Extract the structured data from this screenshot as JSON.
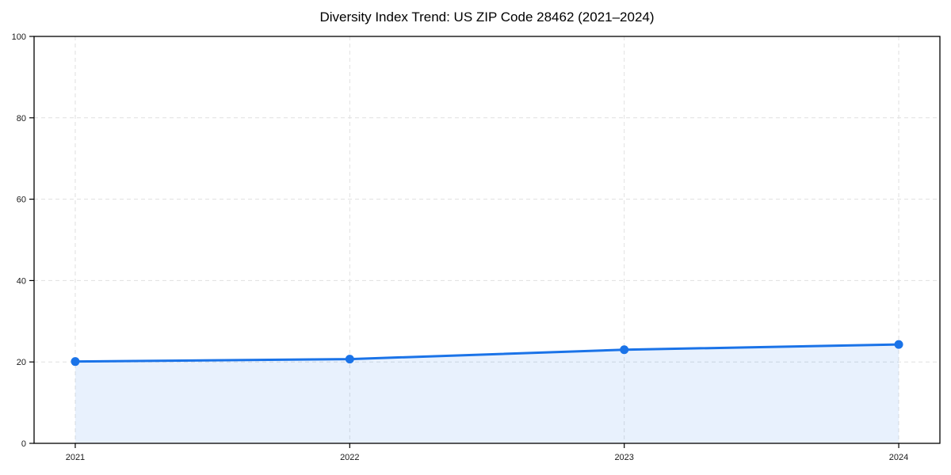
{
  "chart_data": {
    "type": "line",
    "title": "Diversity Index Trend: US ZIP Code 28462 (2021–2024)",
    "xlabel": "",
    "ylabel": "",
    "x": [
      2021,
      2022,
      2023,
      2024
    ],
    "x_tick_labels": [
      "2021",
      "2022",
      "2023",
      "2024"
    ],
    "series": [
      {
        "name": "Diversity Index",
        "values": [
          20.1,
          20.7,
          23.0,
          24.3
        ]
      }
    ],
    "y_ticks": [
      0,
      20,
      40,
      60,
      80,
      100
    ],
    "ylim": [
      0,
      100
    ],
    "xlim": [
      2020.85,
      2024.15
    ],
    "grid": true,
    "grid_style": "dashed",
    "legend": "none",
    "area_fill": true,
    "marker": "circle",
    "colors": {
      "line": "#1a73e8",
      "area_fill": "rgba(26,115,232,0.10)",
      "grid": "#e0e0e0",
      "axis": "#000000",
      "tick_text": "#1a1a1a",
      "title_text": "#000000",
      "background": "#ffffff"
    }
  }
}
